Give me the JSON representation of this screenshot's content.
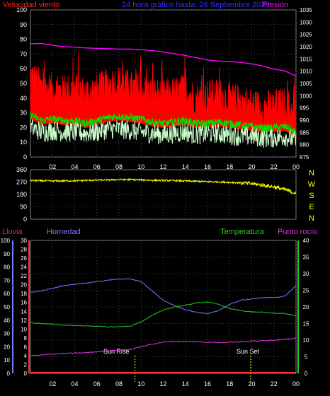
{
  "header": {
    "left_title": "Velocidad viento",
    "center_title": "24 hora gráfico hasta:  26 Septiembre 2020",
    "right_title": "Presión"
  },
  "colors": {
    "wind_max": "#ff0000",
    "wind_avg": "#00e000",
    "wind_min": "#ccffcc",
    "pressure": "#ff00ff",
    "direction": "#ffff00",
    "rain": "#ff3333",
    "humidity": "#7777ff",
    "temperature": "#22cc22",
    "dew_point": "#dd33dd",
    "grid": "#555555",
    "axis_text": "#ffffff"
  },
  "time_labels": [
    "02",
    "04",
    "06",
    "08",
    "10",
    "12",
    "14",
    "16",
    "18",
    "20",
    "22",
    "00"
  ],
  "compass_labels": [
    "N",
    "W",
    "S",
    "E",
    "N"
  ],
  "sun": {
    "rise_label": "Sun Rise",
    "set_label": "Sun Set",
    "rise_hour": 9.45,
    "set_hour": 19.9
  },
  "bottom_legend": {
    "rain": "Lluvia",
    "humidity": "Humedad",
    "temperature": "Temperatura",
    "dew_point": "Punto rocío"
  },
  "chart_data": [
    {
      "type": "line",
      "panel": "wind_pressure",
      "title": "24 hora gráfico hasta:  26 Septiembre 2020",
      "x_ticks": [
        "02",
        "04",
        "06",
        "08",
        "10",
        "12",
        "14",
        "16",
        "18",
        "20",
        "22",
        "00"
      ],
      "y_left_label": "Velocidad viento",
      "y_left_range": [
        0,
        100
      ],
      "y_left_ticks": [
        0,
        10,
        20,
        30,
        40,
        50,
        60,
        70,
        80,
        90,
        100
      ],
      "y_right_label": "Presión",
      "y_right_range": [
        975,
        1035
      ],
      "y_right_ticks": [
        975,
        980,
        985,
        990,
        995,
        1000,
        1005,
        1010,
        1015,
        1020,
        1025,
        1030,
        1035
      ],
      "series": [
        {
          "name": "Velocidad viento",
          "axis": "left",
          "color": "#ff0000",
          "x": [
            0,
            1,
            2,
            3,
            4,
            5,
            6,
            7,
            8,
            9,
            10,
            11,
            12,
            13,
            14,
            15,
            16,
            17,
            18,
            19,
            20,
            21,
            22,
            23,
            24
          ],
          "values": [
            55,
            46,
            44,
            43,
            45,
            42,
            44,
            48,
            50,
            46,
            44,
            42,
            40,
            42,
            44,
            38,
            40,
            41,
            38,
            36,
            34,
            32,
            33,
            35,
            28
          ]
        },
        {
          "axis": "left",
          "color": "#00e000",
          "x": [
            0,
            1,
            2,
            3,
            4,
            5,
            6,
            7,
            8,
            9,
            10,
            11,
            12,
            13,
            14,
            15,
            16,
            17,
            18,
            19,
            20,
            21,
            22,
            23,
            24
          ],
          "values": [
            28,
            24,
            25,
            24,
            24,
            22,
            24,
            26,
            27,
            26,
            25,
            23,
            22,
            23,
            24,
            22,
            22,
            23,
            22,
            21,
            20,
            19,
            19,
            20,
            16
          ]
        },
        {
          "axis": "left",
          "color": "#ccffcc",
          "x": [
            0,
            1,
            2,
            3,
            4,
            5,
            6,
            7,
            8,
            9,
            10,
            11,
            12,
            13,
            14,
            15,
            16,
            17,
            18,
            19,
            20,
            21,
            22,
            23,
            24
          ],
          "values": [
            18,
            15,
            16,
            15,
            15,
            14,
            15,
            17,
            17,
            16,
            15,
            14,
            13,
            14,
            15,
            13,
            14,
            14,
            13,
            12,
            12,
            11,
            11,
            12,
            9
          ]
        },
        {
          "name": "Presión",
          "axis": "right",
          "color": "#ff00ff",
          "x": [
            0,
            1,
            2,
            3,
            4,
            5,
            6,
            7,
            8,
            9,
            10,
            11,
            12,
            13,
            14,
            15,
            16,
            17,
            18,
            19,
            20,
            21,
            22,
            23,
            24
          ],
          "values": [
            1021.2,
            1021.3,
            1020.6,
            1020.0,
            1019.8,
            1019.5,
            1019.3,
            1019.2,
            1019.0,
            1019.0,
            1018.8,
            1018.4,
            1017.8,
            1017.2,
            1016.4,
            1015.5,
            1014.6,
            1014.1,
            1013.9,
            1013.6,
            1013.0,
            1012.1,
            1010.9,
            1010.1,
            1008.0
          ]
        }
      ]
    },
    {
      "type": "line",
      "panel": "wind_direction",
      "x_ticks": [
        "02",
        "04",
        "06",
        "08",
        "10",
        "12",
        "14",
        "16",
        "18",
        "20",
        "22",
        "00"
      ],
      "y_range": [
        0,
        360
      ],
      "y_ticks": [
        0,
        90,
        180,
        270,
        360
      ],
      "y_right_labels": [
        "N",
        "W",
        "S",
        "E",
        "N"
      ],
      "series": [
        {
          "color": "#ffff00",
          "x": [
            0,
            1,
            2,
            3,
            4,
            5,
            6,
            7,
            8,
            9,
            10,
            11,
            12,
            13,
            14,
            15,
            16,
            17,
            18,
            19,
            20,
            21,
            22,
            23,
            24
          ],
          "values": [
            282,
            280,
            278,
            279,
            280,
            282,
            284,
            286,
            288,
            288,
            286,
            283,
            282,
            281,
            278,
            276,
            273,
            271,
            268,
            265,
            258,
            248,
            235,
            215,
            190
          ]
        }
      ]
    },
    {
      "type": "line",
      "panel": "humidity_temperature",
      "x_ticks": [
        "02",
        "04",
        "06",
        "08",
        "10",
        "12",
        "14",
        "16",
        "18",
        "20",
        "22",
        "00"
      ],
      "y_left_outer_ticks": [
        0,
        10,
        20,
        30,
        40,
        50,
        60,
        70,
        80,
        90,
        100
      ],
      "y_left_inner_ticks": [
        0,
        2,
        4,
        6,
        8,
        10,
        12,
        14,
        16,
        18,
        20,
        22,
        24,
        26,
        28,
        30
      ],
      "y_right_ticks": [
        0,
        5,
        10,
        15,
        20,
        25,
        30,
        35,
        40
      ],
      "series": [
        {
          "name": "Lluvia",
          "axis": "left_inner",
          "color": "#ff3333",
          "x": [
            0,
            24
          ],
          "values": [
            0,
            0
          ]
        },
        {
          "name": "Humedad",
          "axis": "left_outer",
          "color": "#7777ff",
          "x": [
            0,
            1,
            2,
            3,
            4,
            5,
            6,
            7,
            8,
            9,
            10,
            11,
            12,
            13,
            14,
            15,
            16,
            17,
            18,
            19,
            20,
            21,
            22,
            23,
            24
          ],
          "values": [
            61,
            62,
            64,
            66,
            67,
            68,
            69,
            70,
            71,
            71,
            69,
            62,
            55,
            51,
            48,
            46,
            45,
            47,
            52,
            55,
            56,
            57,
            57,
            58,
            66
          ]
        },
        {
          "name": "Temperatura",
          "axis": "right",
          "color": "#22cc22",
          "x": [
            0,
            1,
            2,
            3,
            4,
            5,
            6,
            7,
            8,
            9,
            10,
            11,
            12,
            13,
            14,
            15,
            16,
            17,
            18,
            19,
            20,
            21,
            22,
            23,
            24
          ],
          "values": [
            15.2,
            15.0,
            14.8,
            14.5,
            14.4,
            14.3,
            14.2,
            14.0,
            14.0,
            14.2,
            15.5,
            17.5,
            19.0,
            20.0,
            20.5,
            21.2,
            21.5,
            20.8,
            19.5,
            18.9,
            18.5,
            18.4,
            18.1,
            18.0,
            17.3
          ]
        },
        {
          "name": "Punto rocío",
          "axis": "right",
          "color": "#dd33dd",
          "x": [
            0,
            1,
            2,
            3,
            4,
            5,
            6,
            7,
            8,
            9,
            10,
            11,
            12,
            13,
            14,
            15,
            16,
            17,
            18,
            19,
            20,
            21,
            22,
            23,
            24
          ],
          "values": [
            5.3,
            5.5,
            5.8,
            6.0,
            6.1,
            6.2,
            6.5,
            6.8,
            7.0,
            7.2,
            8.0,
            8.8,
            9.4,
            9.6,
            9.6,
            9.5,
            9.4,
            9.3,
            9.4,
            9.5,
            9.7,
            9.9,
            10.0,
            10.2,
            10.6
          ]
        }
      ]
    }
  ]
}
